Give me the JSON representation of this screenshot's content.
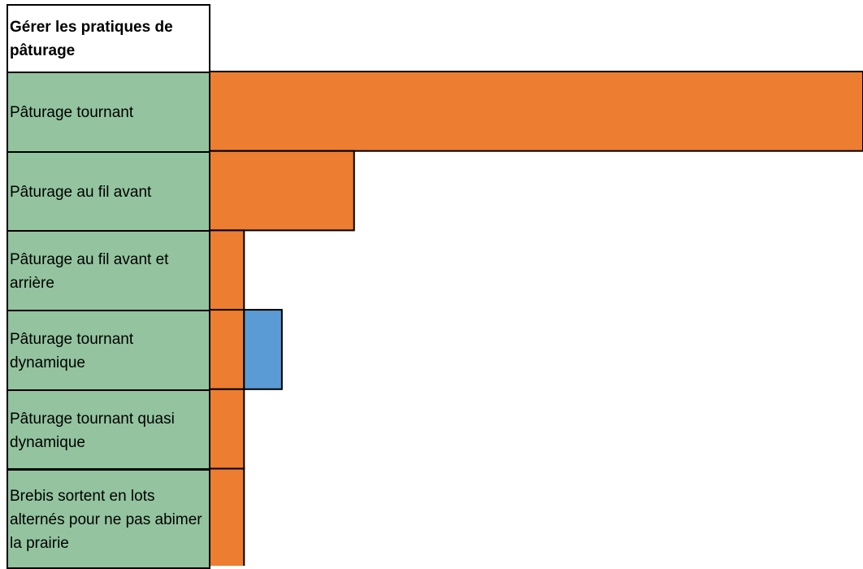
{
  "chart_data": {
    "type": "bar",
    "orientation": "horizontal",
    "stacked": true,
    "title": "Gérer les pratiques de pâturage",
    "categories": [
      "Pâturage tournant",
      "Pâturage au fil avant",
      "Pâturage au fil avant et arrière",
      "Pâturage tournant dynamique",
      "Pâturage tournant quasi dynamique",
      "Brebis sortent en lots alternés pour ne pas abimer la prairie"
    ],
    "category_color": "#93c49f",
    "series": [
      {
        "color": "#ed7d31",
        "values": [
          19,
          4.2,
          1,
          1,
          1,
          1
        ]
      },
      {
        "color": "#5b9bd5",
        "values": [
          null,
          null,
          null,
          1.1,
          null,
          null
        ]
      }
    ],
    "xlim": [
      0,
      19
    ]
  }
}
